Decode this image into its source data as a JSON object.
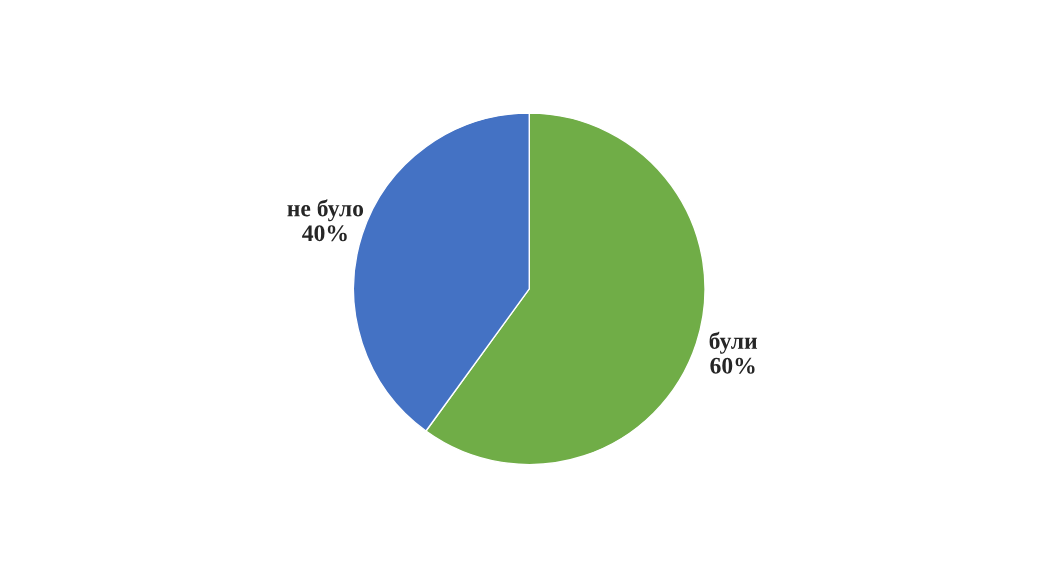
{
  "chart_data": {
    "type": "pie",
    "categories": [
      "були",
      "не було"
    ],
    "values": [
      60,
      40
    ],
    "colors": [
      "#70ad47",
      "#4472c4"
    ],
    "value_labels": [
      "60%",
      "40%"
    ],
    "legend": false
  }
}
